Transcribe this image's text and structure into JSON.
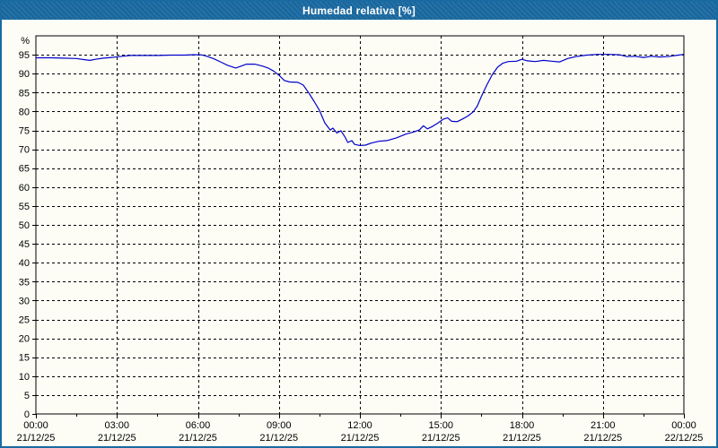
{
  "window": {
    "title": "Humedad relativa [%]"
  },
  "colors": {
    "frame": "#1a6aa2",
    "titlebar": "#1a6aa2",
    "background": "#fdfdf6",
    "line": "#0000cc",
    "grid": "#000000",
    "text": "#000000"
  },
  "chart_data": {
    "type": "line",
    "title": "Humedad relativa [%]",
    "y_unit": "%",
    "ylim": [
      0,
      100
    ],
    "ytick_step": 5,
    "ytick_label_min": 0,
    "ytick_label_max": 95,
    "grid": "dashed",
    "legend": "none",
    "x_hours_range": [
      0,
      24
    ],
    "x_major_step_hours": 3,
    "x_minor_step_hours": 1.5,
    "x_ticks": [
      {
        "hour": 0,
        "time": "00:00",
        "date": "21/12/25"
      },
      {
        "hour": 3,
        "time": "03:00",
        "date": "21/12/25"
      },
      {
        "hour": 6,
        "time": "06:00",
        "date": "21/12/25"
      },
      {
        "hour": 9,
        "time": "09:00",
        "date": "21/12/25"
      },
      {
        "hour": 12,
        "time": "12:00",
        "date": "21/12/25"
      },
      {
        "hour": 15,
        "time": "15:00",
        "date": "21/12/25"
      },
      {
        "hour": 18,
        "time": "18:00",
        "date": "21/12/25"
      },
      {
        "hour": 21,
        "time": "21:00",
        "date": "21/12/25"
      },
      {
        "hour": 24,
        "time": "00:00",
        "date": "22/12/25"
      }
    ],
    "series": [
      {
        "name": "Humedad relativa",
        "color": "#0000cc",
        "points": [
          [
            0.0,
            94.2
          ],
          [
            0.3,
            94.2
          ],
          [
            0.6,
            94.2
          ],
          [
            1.0,
            94.1
          ],
          [
            1.5,
            94.0
          ],
          [
            1.8,
            93.7
          ],
          [
            2.0,
            93.5
          ],
          [
            2.2,
            93.8
          ],
          [
            2.5,
            94.1
          ],
          [
            2.8,
            94.3
          ],
          [
            3.2,
            94.6
          ],
          [
            3.5,
            94.8
          ],
          [
            4.0,
            94.8
          ],
          [
            4.5,
            94.8
          ],
          [
            5.0,
            94.9
          ],
          [
            5.5,
            94.9
          ],
          [
            5.8,
            95.0
          ],
          [
            6.1,
            95.0
          ],
          [
            6.3,
            94.7
          ],
          [
            6.6,
            93.9
          ],
          [
            6.9,
            92.9
          ],
          [
            7.1,
            92.2
          ],
          [
            7.4,
            91.5
          ],
          [
            7.6,
            92.0
          ],
          [
            7.8,
            92.5
          ],
          [
            8.1,
            92.5
          ],
          [
            8.4,
            92.0
          ],
          [
            8.6,
            91.5
          ],
          [
            8.8,
            90.7
          ],
          [
            9.0,
            89.6
          ],
          [
            9.2,
            88.2
          ],
          [
            9.4,
            87.8
          ],
          [
            9.7,
            87.7
          ],
          [
            9.9,
            87.0
          ],
          [
            10.1,
            85.0
          ],
          [
            10.3,
            82.7
          ],
          [
            10.5,
            80.3
          ],
          [
            10.7,
            77.0
          ],
          [
            10.9,
            75.1
          ],
          [
            11.0,
            75.6
          ],
          [
            11.15,
            74.3
          ],
          [
            11.3,
            74.9
          ],
          [
            11.45,
            73.2
          ],
          [
            11.55,
            71.8
          ],
          [
            11.7,
            72.3
          ],
          [
            11.8,
            71.3
          ],
          [
            12.0,
            71.0
          ],
          [
            12.2,
            71.1
          ],
          [
            12.45,
            71.7
          ],
          [
            12.7,
            72.1
          ],
          [
            13.0,
            72.3
          ],
          [
            13.35,
            73.0
          ],
          [
            13.7,
            74.0
          ],
          [
            14.0,
            74.6
          ],
          [
            14.2,
            75.1
          ],
          [
            14.35,
            76.2
          ],
          [
            14.5,
            75.4
          ],
          [
            14.7,
            76.1
          ],
          [
            14.9,
            77.0
          ],
          [
            15.1,
            78.0
          ],
          [
            15.25,
            78.3
          ],
          [
            15.4,
            77.4
          ],
          [
            15.6,
            77.3
          ],
          [
            15.8,
            78.0
          ],
          [
            16.0,
            78.8
          ],
          [
            16.2,
            79.9
          ],
          [
            16.35,
            81.5
          ],
          [
            16.5,
            84.0
          ],
          [
            16.7,
            87.0
          ],
          [
            16.9,
            89.7
          ],
          [
            17.1,
            91.7
          ],
          [
            17.3,
            92.8
          ],
          [
            17.5,
            93.2
          ],
          [
            17.8,
            93.3
          ],
          [
            18.0,
            93.8
          ],
          [
            18.2,
            93.4
          ],
          [
            18.5,
            93.2
          ],
          [
            18.8,
            93.5
          ],
          [
            19.1,
            93.3
          ],
          [
            19.4,
            93.1
          ],
          [
            19.7,
            94.0
          ],
          [
            20.0,
            94.5
          ],
          [
            20.4,
            94.9
          ],
          [
            20.8,
            95.1
          ],
          [
            21.2,
            95.1
          ],
          [
            21.6,
            95.0
          ],
          [
            21.9,
            94.5
          ],
          [
            22.2,
            94.6
          ],
          [
            22.5,
            94.3
          ],
          [
            22.8,
            94.6
          ],
          [
            23.1,
            94.4
          ],
          [
            23.4,
            94.5
          ],
          [
            23.7,
            94.8
          ],
          [
            24.0,
            95.1
          ]
        ]
      }
    ]
  }
}
